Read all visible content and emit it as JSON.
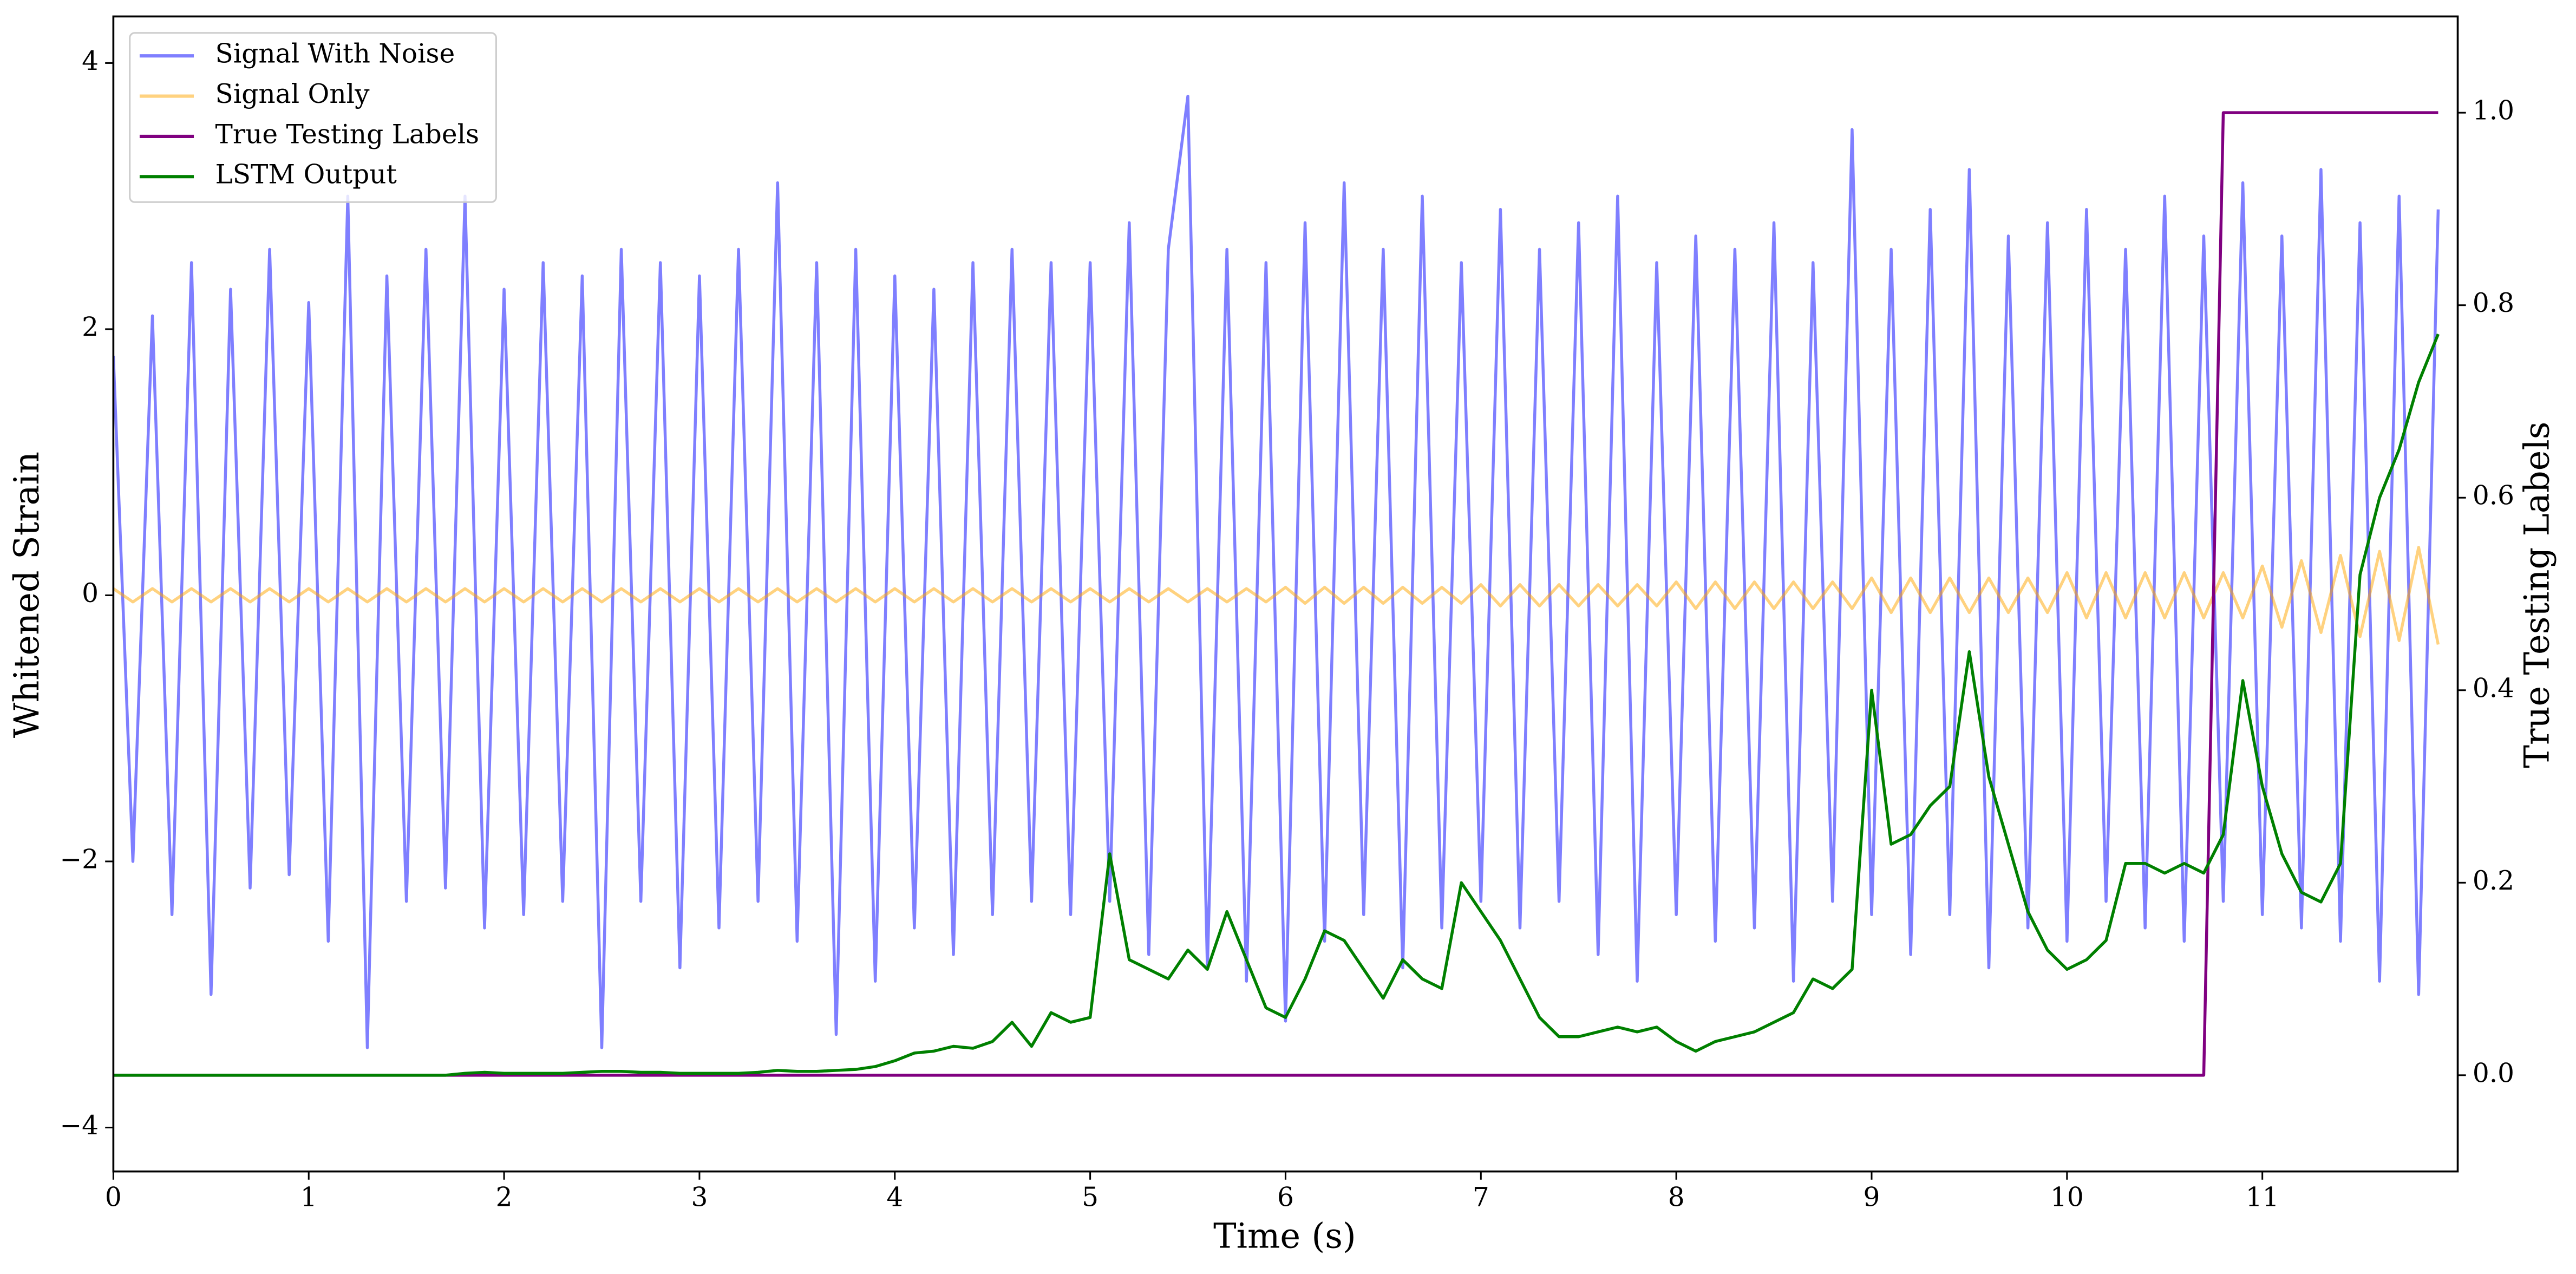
{
  "chart_data": {
    "type": "line",
    "xlabel": "Time (s)",
    "ylabel": "Whitened Strain",
    "y2label": "True Testing Labels",
    "x": [
      0,
      0.1,
      0.2,
      0.3,
      0.4,
      0.5,
      0.6,
      0.7,
      0.8,
      0.9,
      1,
      1.1,
      1.2,
      1.3,
      1.4,
      1.5,
      1.6,
      1.7,
      1.8,
      1.9,
      2,
      2.1,
      2.2,
      2.3,
      2.4,
      2.5,
      2.6,
      2.7,
      2.8,
      2.9,
      3,
      3.1,
      3.2,
      3.3,
      3.4,
      3.5,
      3.6,
      3.7,
      3.8,
      3.9,
      4,
      4.1,
      4.2,
      4.3,
      4.4,
      4.5,
      4.6,
      4.7,
      4.8,
      4.9,
      5,
      5.1,
      5.2,
      5.3,
      5.4,
      5.5,
      5.6,
      5.7,
      5.8,
      5.9,
      6,
      6.1,
      6.2,
      6.3,
      6.4,
      6.5,
      6.6,
      6.7,
      6.8,
      6.9,
      7,
      7.1,
      7.2,
      7.3,
      7.4,
      7.5,
      7.6,
      7.7,
      7.8,
      7.9,
      8,
      8.1,
      8.2,
      8.3,
      8.4,
      8.5,
      8.6,
      8.7,
      8.8,
      8.9,
      9,
      9.1,
      9.2,
      9.3,
      9.4,
      9.5,
      9.6,
      9.7,
      9.8,
      9.9,
      10,
      10.1,
      10.2,
      10.3,
      10.4,
      10.5,
      10.6,
      10.7,
      10.8,
      10.9,
      11,
      11.1,
      11.2,
      11.3,
      11.4,
      11.5,
      11.6,
      11.7,
      11.8,
      11.9
    ],
    "series": [
      {
        "name": "Signal With Noise",
        "color": "#0000ff",
        "alpha": 0.5,
        "values": [
          1.8,
          -2.0,
          2.1,
          -2.4,
          2.5,
          -3.0,
          2.3,
          -2.2,
          2.6,
          -2.1,
          2.2,
          -2.6,
          3.0,
          -3.4,
          2.4,
          -2.3,
          2.6,
          -2.2,
          3.0,
          -2.5,
          2.3,
          -2.4,
          2.5,
          -2.3,
          2.4,
          -3.4,
          2.6,
          -2.3,
          2.5,
          -2.8,
          2.4,
          -2.5,
          2.6,
          -2.3,
          3.1,
          -2.6,
          2.5,
          -3.3,
          2.6,
          -2.9,
          2.4,
          -2.5,
          2.3,
          -2.7,
          2.5,
          -2.4,
          2.6,
          -2.3,
          2.5,
          -2.4,
          2.5,
          -2.3,
          2.8,
          -2.7,
          2.6,
          3.75,
          -2.8,
          2.6,
          -2.9,
          2.5,
          -3.2,
          2.8,
          -2.6,
          3.1,
          -2.4,
          2.6,
          -2.8,
          3.0,
          -2.5,
          2.5,
          -2.3,
          2.9,
          -2.5,
          2.6,
          -2.3,
          2.8,
          -2.7,
          3.0,
          -2.9,
          2.5,
          -2.4,
          2.7,
          -2.6,
          2.6,
          -2.5,
          2.8,
          -2.9,
          2.5,
          -2.3,
          3.5,
          -2.4,
          2.6,
          -2.7,
          2.9,
          -2.4,
          3.2,
          -2.8,
          2.7,
          -2.5,
          2.8,
          -2.6,
          2.9,
          -2.3,
          2.6,
          -2.5,
          3.0,
          -2.6,
          2.7,
          -2.3,
          3.1,
          -2.4,
          2.7,
          -2.5,
          3.2,
          -2.6,
          2.8,
          -2.9,
          3.0,
          -3.0,
          2.9
        ]
      },
      {
        "name": "Signal Only",
        "color": "#ffa500",
        "alpha": 0.5,
        "values": [
          0.05,
          -0.05,
          0.05,
          -0.05,
          0.05,
          -0.05,
          0.05,
          -0.05,
          0.05,
          -0.05,
          0.05,
          -0.05,
          0.05,
          -0.05,
          0.05,
          -0.05,
          0.05,
          -0.05,
          0.05,
          -0.05,
          0.05,
          -0.05,
          0.05,
          -0.05,
          0.05,
          -0.05,
          0.05,
          -0.05,
          0.05,
          -0.05,
          0.05,
          -0.05,
          0.05,
          -0.05,
          0.05,
          -0.05,
          0.05,
          -0.05,
          0.05,
          -0.05,
          0.05,
          -0.05,
          0.05,
          -0.05,
          0.05,
          -0.05,
          0.05,
          -0.05,
          0.05,
          -0.05,
          0.05,
          -0.05,
          0.05,
          -0.05,
          0.05,
          -0.05,
          0.05,
          -0.05,
          0.05,
          -0.05,
          0.06,
          -0.06,
          0.06,
          -0.06,
          0.06,
          -0.06,
          0.06,
          -0.06,
          0.06,
          -0.06,
          0.08,
          -0.08,
          0.08,
          -0.08,
          0.08,
          -0.08,
          0.08,
          -0.08,
          0.08,
          -0.08,
          0.1,
          -0.1,
          0.1,
          -0.1,
          0.1,
          -0.1,
          0.1,
          -0.1,
          0.1,
          -0.1,
          0.13,
          -0.13,
          0.13,
          -0.13,
          0.13,
          -0.13,
          0.13,
          -0.13,
          0.13,
          -0.13,
          0.17,
          -0.17,
          0.17,
          -0.17,
          0.17,
          -0.17,
          0.17,
          -0.17,
          0.17,
          -0.17,
          0.22,
          -0.24,
          0.26,
          -0.28,
          0.3,
          -0.31,
          0.33,
          -0.34,
          0.36,
          -0.37
        ]
      },
      {
        "name": "True Testing Labels",
        "color": "#800080",
        "axis": "y2",
        "values": [
          0,
          0,
          0,
          0,
          0,
          0,
          0,
          0,
          0,
          0,
          0,
          0,
          0,
          0,
          0,
          0,
          0,
          0,
          0,
          0,
          0,
          0,
          0,
          0,
          0,
          0,
          0,
          0,
          0,
          0,
          0,
          0,
          0,
          0,
          0,
          0,
          0,
          0,
          0,
          0,
          0,
          0,
          0,
          0,
          0,
          0,
          0,
          0,
          0,
          0,
          0,
          0,
          0,
          0,
          0,
          0,
          0,
          0,
          0,
          0,
          0,
          0,
          0,
          0,
          0,
          0,
          0,
          0,
          0,
          0,
          0,
          0,
          0,
          0,
          0,
          0,
          0,
          0,
          0,
          0,
          0,
          0,
          0,
          0,
          0,
          0,
          0,
          0,
          0,
          0,
          0,
          0,
          0,
          0,
          0,
          0,
          0,
          0,
          0,
          0,
          0,
          0,
          0,
          0,
          0,
          0,
          0,
          0,
          1,
          1,
          1,
          1,
          1,
          1,
          1,
          1,
          1,
          1,
          1,
          1
        ]
      },
      {
        "name": "LSTM Output",
        "color": "#008000",
        "axis": "y2",
        "values": [
          0,
          0,
          0,
          0,
          0,
          0,
          0,
          0,
          0,
          0,
          0,
          0,
          0,
          0,
          0,
          0,
          0,
          0,
          0.002,
          0.003,
          0.002,
          0.002,
          0.002,
          0.002,
          0.003,
          0.004,
          0.004,
          0.003,
          0.003,
          0.002,
          0.002,
          0.002,
          0.002,
          0.003,
          0.005,
          0.004,
          0.004,
          0.005,
          0.006,
          0.009,
          0.015,
          0.023,
          0.025,
          0.03,
          0.028,
          0.035,
          0.055,
          0.03,
          0.065,
          0.055,
          0.06,
          0.23,
          0.12,
          0.11,
          0.1,
          0.13,
          0.11,
          0.17,
          0.12,
          0.07,
          0.06,
          0.1,
          0.15,
          0.14,
          0.11,
          0.08,
          0.12,
          0.1,
          0.09,
          0.2,
          0.17,
          0.14,
          0.1,
          0.06,
          0.04,
          0.04,
          0.045,
          0.05,
          0.045,
          0.05,
          0.035,
          0.025,
          0.035,
          0.04,
          0.045,
          0.055,
          0.065,
          0.1,
          0.09,
          0.11,
          0.4,
          0.24,
          0.25,
          0.28,
          0.3,
          0.44,
          0.31,
          0.24,
          0.17,
          0.13,
          0.11,
          0.12,
          0.14,
          0.22,
          0.22,
          0.21,
          0.22,
          0.21,
          0.25,
          0.41,
          0.3,
          0.23,
          0.19,
          0.18,
          0.22,
          0.52,
          0.6,
          0.65,
          0.72,
          0.77
        ]
      }
    ],
    "xlim": [
      0,
      12
    ],
    "xticks": [
      0,
      1,
      2,
      3,
      4,
      5,
      6,
      7,
      8,
      9,
      10,
      11
    ],
    "ylim": [
      -4.33,
      4.35
    ],
    "yticks": [
      {
        "value": -4,
        "label": "−4"
      },
      {
        "value": -2,
        "label": "−2"
      },
      0,
      2,
      4
    ],
    "y2lim": [
      -0.1,
      1.1
    ],
    "y2ticks": [
      {
        "value": 0,
        "label": "0.0"
      },
      {
        "value": 0.2,
        "label": "0.2"
      },
      {
        "value": 0.4,
        "label": "0.4"
      },
      {
        "value": 0.6,
        "label": "0.6"
      },
      {
        "value": 0.8,
        "label": "0.8"
      },
      {
        "value": 1,
        "label": "1.0"
      }
    ],
    "legend": "upper-left",
    "grid": false
  }
}
